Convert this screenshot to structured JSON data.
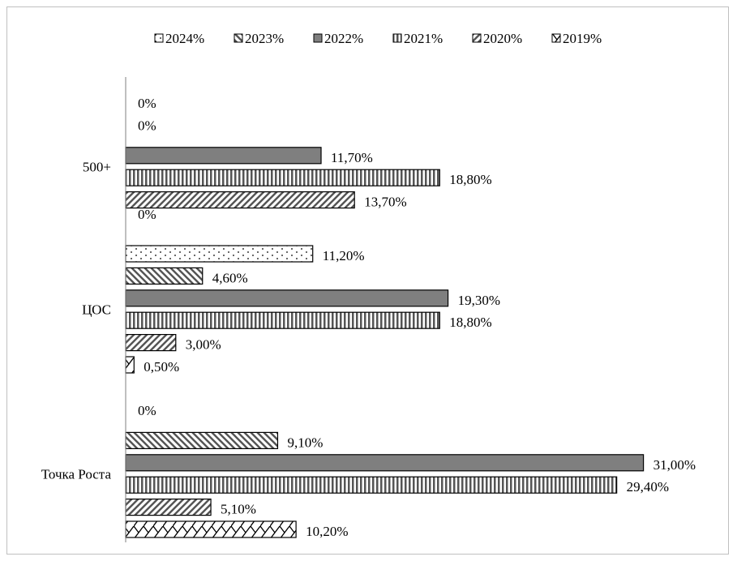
{
  "chart_data": {
    "type": "bar",
    "orientation": "horizontal",
    "categories": [
      "500+",
      "ЦОС",
      "Точка Роста"
    ],
    "series": [
      {
        "name": "2024%",
        "values": [
          0,
          11.2,
          0
        ],
        "labels": [
          "0%",
          "11,20%",
          "0%"
        ],
        "fill": "#ffffff",
        "pattern": "dots"
      },
      {
        "name": "2023%",
        "values": [
          0,
          4.6,
          9.1
        ],
        "labels": [
          "0%",
          "4,60%",
          "9,10%"
        ],
        "fill": "#ffffff",
        "pattern": "diag-down"
      },
      {
        "name": "2022%",
        "values": [
          11.7,
          19.3,
          31.0
        ],
        "labels": [
          "11,70%",
          "19,30%",
          "31,00%"
        ],
        "fill": "#7f7f7f",
        "pattern": "solid"
      },
      {
        "name": "2021%",
        "values": [
          18.8,
          18.8,
          29.4
        ],
        "labels": [
          "18,80%",
          "18,80%",
          "29,40%"
        ],
        "fill": "#ffffff",
        "pattern": "vertical"
      },
      {
        "name": "2020%",
        "values": [
          13.7,
          3.0,
          5.1
        ],
        "labels": [
          "13,70%",
          "3,00%",
          "5,10%"
        ],
        "fill": "#ffffff",
        "pattern": "diag-up"
      },
      {
        "name": "2019%",
        "values": [
          0,
          0.5,
          10.2
        ],
        "labels": [
          "0%",
          "0,50%",
          "10,20%"
        ],
        "fill": "#ffffff",
        "pattern": "zigzag"
      }
    ],
    "xlim": [
      0,
      31
    ],
    "legend_position": "top",
    "grid": false,
    "axis_color": "#7f7f7f",
    "bar_stroke": "#000000"
  }
}
